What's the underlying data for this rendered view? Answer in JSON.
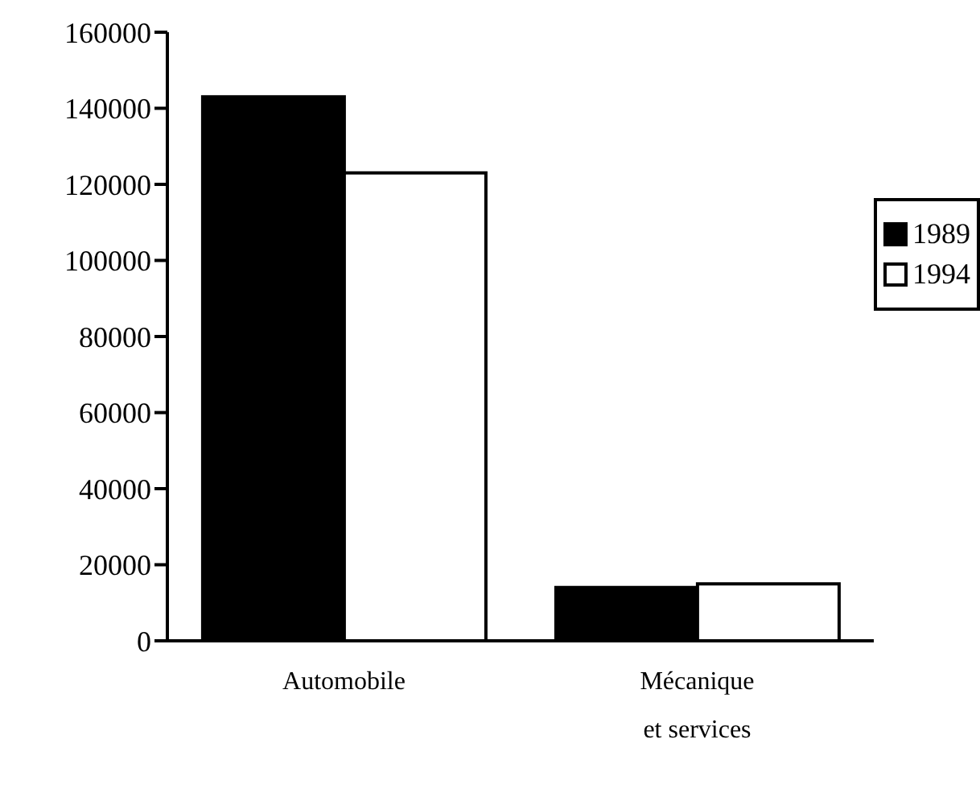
{
  "chart_data": {
    "type": "bar",
    "categories": [
      "Automobile",
      "Mécanique et services"
    ],
    "series": [
      {
        "name": "1989",
        "color": "#000000",
        "values": [
          143000,
          14000
        ]
      },
      {
        "name": "1994",
        "color": "#ffffff",
        "values": [
          123000,
          15000
        ]
      }
    ],
    "ylim": [
      0,
      160000
    ],
    "yticks": [
      0,
      20000,
      40000,
      60000,
      80000,
      100000,
      120000,
      140000,
      160000
    ],
    "grid": false,
    "legend": "right"
  }
}
